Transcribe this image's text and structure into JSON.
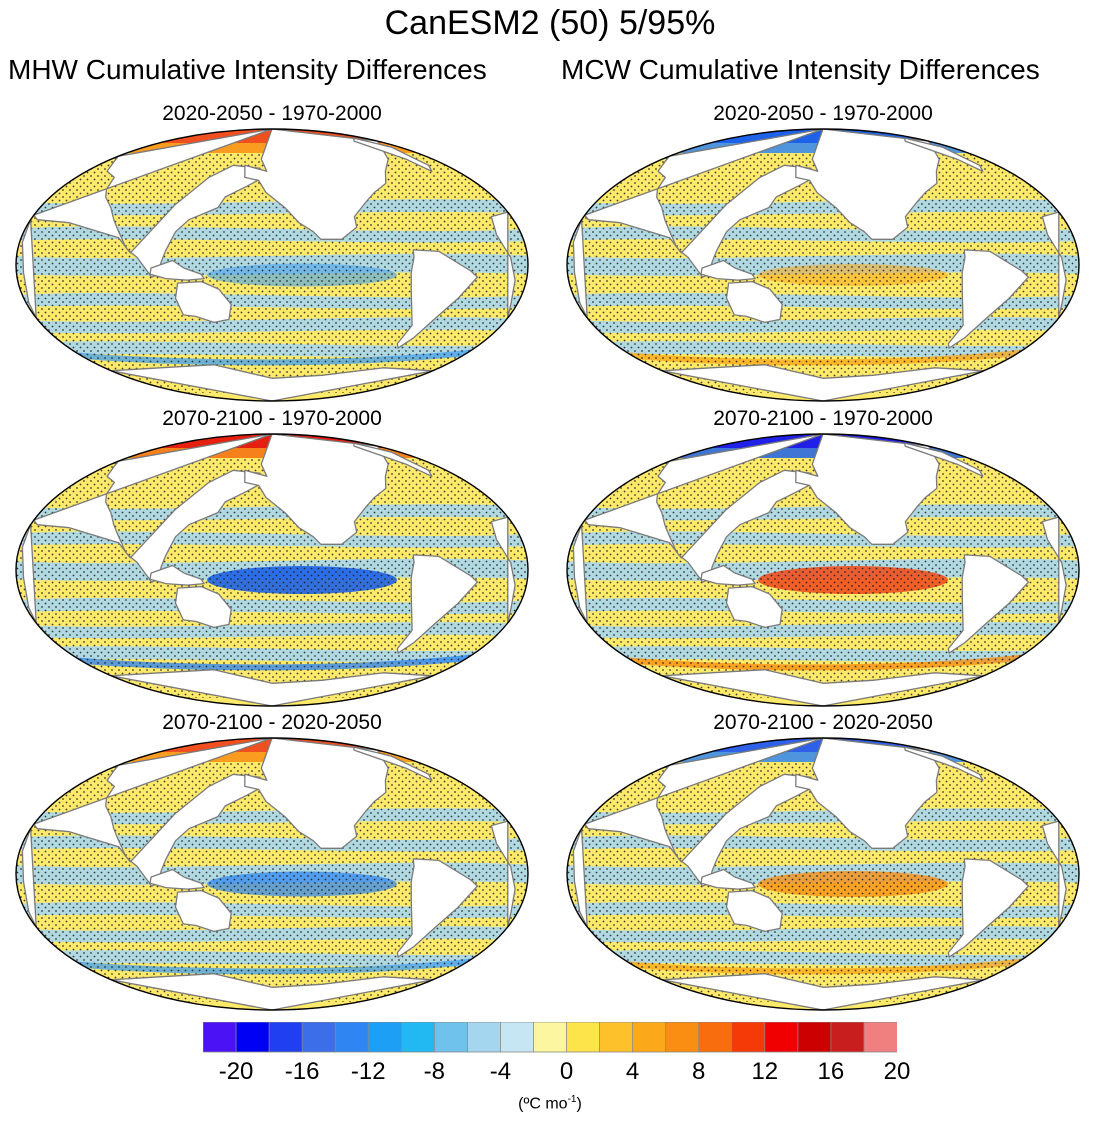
{
  "title": "CanESM2 (50) 5/95%",
  "columns": [
    {
      "heading": "MHW Cumulative Intensity Differences"
    },
    {
      "heading": "MCW Cumulative Intensity Differences"
    }
  ],
  "panels": [
    {
      "title": "2020-2050 - 1970-2000",
      "variable": "MHW",
      "tone": "mhw1"
    },
    {
      "title": "2020-2050 - 1970-2000",
      "variable": "MCW",
      "tone": "mcw1"
    },
    {
      "title": "2070-2100 - 1970-2000",
      "variable": "MHW",
      "tone": "mhw2"
    },
    {
      "title": "2070-2100 - 1970-2000",
      "variable": "MCW",
      "tone": "mcw2"
    },
    {
      "title": "2070-2100 - 2020-2050",
      "variable": "MHW",
      "tone": "mhw3"
    },
    {
      "title": "2070-2100 - 2020-2050",
      "variable": "MCW",
      "tone": "mcw3"
    }
  ],
  "colorbar": {
    "colors": [
      "#4b12f5",
      "#0000f5",
      "#1f3ff0",
      "#3b6ee8",
      "#2f86f2",
      "#1d9ff5",
      "#22b8f2",
      "#6ec2ec",
      "#a4d6f0",
      "#c7e6f4",
      "#fdf6a0",
      "#fde44a",
      "#fdc12b",
      "#fba91a",
      "#f98e12",
      "#f86d0e",
      "#f53a08",
      "#f00000",
      "#cc0000",
      "#c81e1e",
      "#f08080"
    ],
    "tick_labels": [
      "-20",
      "-16",
      "-12",
      "-8",
      "-4",
      "0",
      "4",
      "8",
      "12",
      "16",
      "20"
    ],
    "units_text": "(ºC mo",
    "units_sup": "-1",
    "units_close": ")"
  }
}
